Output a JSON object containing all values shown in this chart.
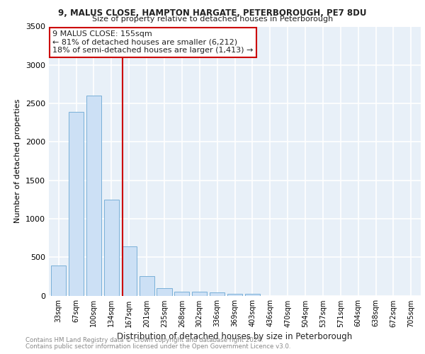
{
  "title1": "9, MALUS CLOSE, HAMPTON HARGATE, PETERBOROUGH, PE7 8DU",
  "title2": "Size of property relative to detached houses in Peterborough",
  "xlabel": "Distribution of detached houses by size in Peterborough",
  "ylabel": "Number of detached properties",
  "categories": [
    "33sqm",
    "67sqm",
    "100sqm",
    "134sqm",
    "167sqm",
    "201sqm",
    "235sqm",
    "268sqm",
    "302sqm",
    "336sqm",
    "369sqm",
    "403sqm",
    "436sqm",
    "470sqm",
    "504sqm",
    "537sqm",
    "571sqm",
    "604sqm",
    "638sqm",
    "672sqm",
    "705sqm"
  ],
  "values": [
    390,
    2390,
    2600,
    1250,
    640,
    250,
    100,
    55,
    55,
    40,
    20,
    20,
    0,
    0,
    0,
    0,
    0,
    0,
    0,
    0,
    0
  ],
  "bar_color": "#cce0f5",
  "bar_edge_color": "#7ab0d8",
  "vline_color": "#cc0000",
  "annotation_text": "9 MALUS CLOSE: 155sqm\n← 81% of detached houses are smaller (6,212)\n18% of semi-detached houses are larger (1,413) →",
  "annotation_box_color": "#cc0000",
  "ylim": [
    0,
    3500
  ],
  "yticks": [
    0,
    500,
    1000,
    1500,
    2000,
    2500,
    3000,
    3500
  ],
  "footnote1": "Contains HM Land Registry data © Crown copyright and database right 2024.",
  "footnote2": "Contains public sector information licensed under the Open Government Licence v3.0.",
  "bg_color": "#e8f0f8",
  "grid_color": "#ffffff"
}
